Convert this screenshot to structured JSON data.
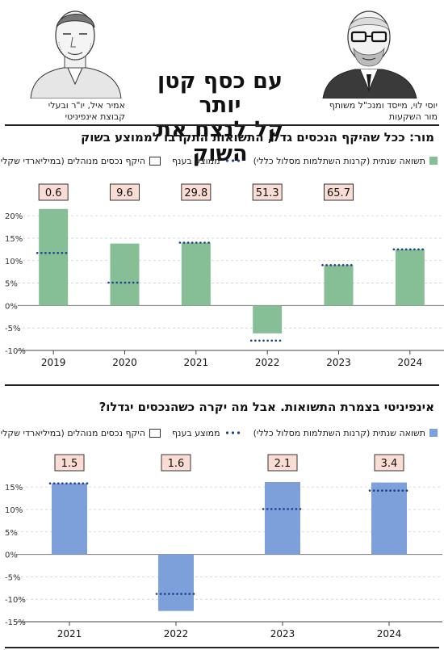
{
  "header": {
    "headline_line1": "עם כסף קטן יותר",
    "headline_line2": "קל לנצח את השוק",
    "left_person": {
      "line1": "אמיר איל, יו\"ר ובעלי",
      "line2": "קבוצת אינפיניטי"
    },
    "right_person": {
      "line1": "יוסי לוי, מייסד ומנכ\"ל משותף",
      "line2": "מור השקעות"
    }
  },
  "legend": {
    "annual_return": "תשואה שנתית (קרנות השתלמות מסלול כללי)",
    "sector_avg": "ממוצע בענף",
    "aum": "היקף נכסים מנוהלים (במיליארדי שקלים)"
  },
  "colors": {
    "green": "#86bf95",
    "blue": "#7d9fda",
    "dots": "#1f3f8f",
    "label_box": "#f9dcd3"
  },
  "chart_data": [
    {
      "type": "bar",
      "title": "מור: ככל שהיקף הנכסים גדל, התשואות התקרבו לממוצע בשוק",
      "categories": [
        "2019",
        "2020",
        "2021",
        "2022",
        "2023",
        "2024"
      ],
      "series": [
        {
          "name": "תשואה שנתית (קרנות השתלמות מסלול כללי)",
          "values": [
            21.5,
            13.8,
            14.0,
            -6.2,
            9.0,
            12.5
          ]
        },
        {
          "name": "ממוצע בענף",
          "values": [
            11.7,
            5.1,
            14.0,
            -7.8,
            9.0,
            12.5
          ]
        }
      ],
      "aum_labels": [
        "0.6",
        "9.6",
        "29.8",
        "51.3",
        "65.7",
        ""
      ],
      "ylim": [
        -10,
        22
      ],
      "yticks": [
        -10,
        -5,
        0,
        5,
        10,
        15,
        20
      ],
      "ytick_labels": [
        "-10%",
        "-5%",
        "0%",
        "5%",
        "10%",
        "15%",
        "20%"
      ],
      "grid": true
    },
    {
      "type": "bar",
      "title": "אינפיניטי בצמרת התשואות. אבל מה יקרה כשהנכסים יגדלו?",
      "categories": [
        "2021",
        "2022",
        "2023",
        "2024"
      ],
      "series": [
        {
          "name": "תשואה שנתית (קרנות השתלמות מסלול כללי)",
          "values": [
            15.8,
            -12.6,
            16.1,
            16.0
          ]
        },
        {
          "name": "ממוצע בענף",
          "values": [
            15.8,
            -8.8,
            10.1,
            14.2
          ]
        }
      ],
      "aum_labels": [
        "1.5",
        "1.6",
        "2.1",
        "3.4"
      ],
      "ylim": [
        -15,
        17
      ],
      "yticks": [
        -15,
        -10,
        -5,
        0,
        5,
        10,
        15
      ],
      "ytick_labels": [
        "-15%",
        "-10%",
        "-5%",
        "0%",
        "5%",
        "10%",
        "15%"
      ],
      "grid": true
    }
  ]
}
